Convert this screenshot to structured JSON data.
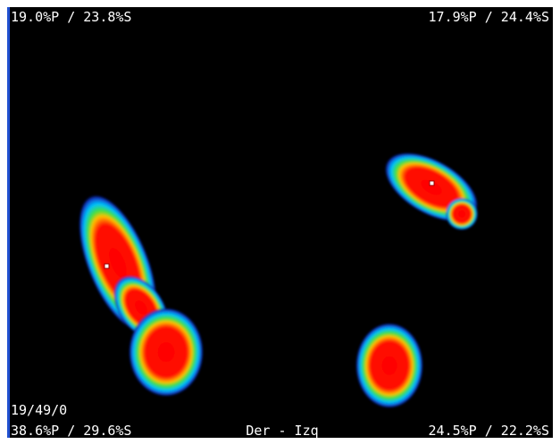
{
  "overlay": {
    "top_left": "19.0%P / 23.8%S",
    "top_right": "17.9%P / 24.4%S",
    "frame_info": "19/49/0",
    "bottom_left": "38.6%P / 29.6%S",
    "bottom_center": "Der - Izq",
    "bottom_right": "24.5%P / 22.2%S"
  }
}
